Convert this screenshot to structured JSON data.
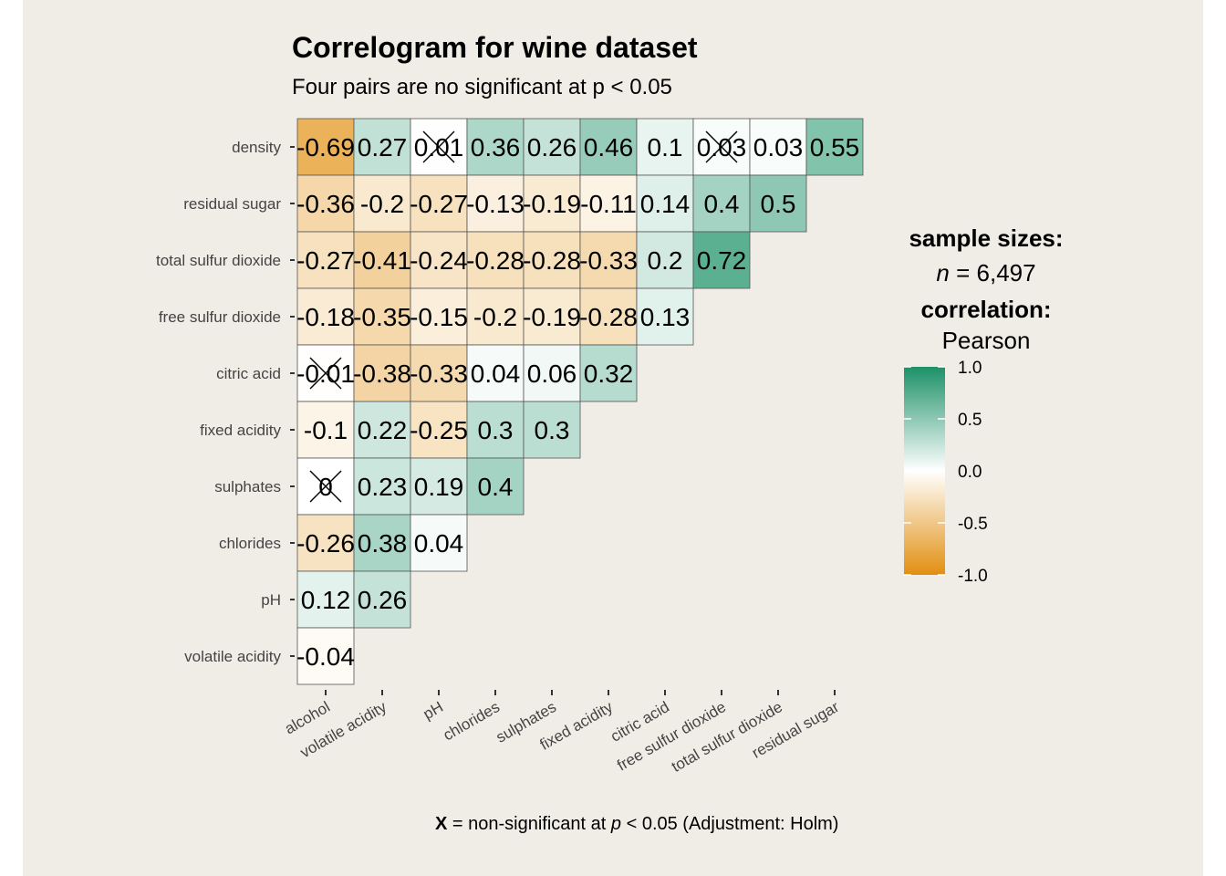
{
  "colors": {
    "background": "#F0EDE6",
    "low": "#E28F10",
    "mid": "#FFFFFF",
    "high": "#1C9168"
  },
  "header": {
    "title": "Correlogram for wine dataset",
    "subtitle": "Four pairs are no significant at p < 0.05"
  },
  "caption": {
    "mark": "X",
    "text_before": " = non-significant at ",
    "p": "p",
    "text_after": " < 0.05 (Adjustment: Holm)"
  },
  "legend": {
    "sample_title": "sample sizes:",
    "n_label": "n",
    "n_value": " = 6,497",
    "corr_title": "correlation:",
    "corr_method": "Pearson",
    "ticks": [
      "1.0",
      "0.5",
      "0.0",
      "-0.5",
      "-1.0"
    ],
    "tick_values": [
      1.0,
      0.5,
      0.0,
      -0.5,
      -1.0
    ]
  },
  "chart_data": {
    "type": "heatmap",
    "title": "Correlogram for wine dataset",
    "subtitle": "Four pairs are no significant at p < 0.05",
    "x_labels": [
      "alcohol",
      "volatile acidity",
      "pH",
      "chlorides",
      "sulphates",
      "fixed acidity",
      "citric acid",
      "free sulfur dioxide",
      "total sulfur dioxide",
      "residual sugar"
    ],
    "y_labels": [
      "density",
      "residual sugar",
      "total sulfur dioxide",
      "free sulfur dioxide",
      "citric acid",
      "fixed acidity",
      "sulphates",
      "chlorides",
      "pH",
      "volatile acidity"
    ],
    "rows": [
      {
        "values": [
          -0.69,
          0.27,
          0.01,
          0.36,
          0.26,
          0.46,
          0.1,
          0.03,
          0.03,
          0.55
        ],
        "labels": [
          "-0.69",
          "0.27",
          "0.01",
          "0.36",
          "0.26",
          "0.46",
          "0.1",
          "0.03",
          "0.03",
          "0.55"
        ],
        "nonsig": [
          false,
          false,
          true,
          false,
          false,
          false,
          false,
          true,
          false,
          false
        ]
      },
      {
        "values": [
          -0.36,
          -0.2,
          -0.27,
          -0.13,
          -0.19,
          -0.11,
          0.14,
          0.4,
          0.5
        ],
        "labels": [
          "-0.36",
          "-0.2",
          "-0.27",
          "-0.13",
          "-0.19",
          "-0.11",
          "0.14",
          "0.4",
          "0.5"
        ],
        "nonsig": [
          false,
          false,
          false,
          false,
          false,
          false,
          false,
          false,
          false
        ]
      },
      {
        "values": [
          -0.27,
          -0.41,
          -0.24,
          -0.28,
          -0.28,
          -0.33,
          0.2,
          0.72
        ],
        "labels": [
          "-0.27",
          "-0.41",
          "-0.24",
          "-0.28",
          "-0.28",
          "-0.33",
          "0.2",
          "0.72"
        ],
        "nonsig": [
          false,
          false,
          false,
          false,
          false,
          false,
          false,
          false
        ]
      },
      {
        "values": [
          -0.18,
          -0.35,
          -0.15,
          -0.2,
          -0.19,
          -0.28,
          0.13
        ],
        "labels": [
          "-0.18",
          "-0.35",
          "-0.15",
          "-0.2",
          "-0.19",
          "-0.28",
          "0.13"
        ],
        "nonsig": [
          false,
          false,
          false,
          false,
          false,
          false,
          false
        ]
      },
      {
        "values": [
          -0.01,
          -0.38,
          -0.33,
          0.04,
          0.06,
          0.32
        ],
        "labels": [
          "-0.01",
          "-0.38",
          "-0.33",
          "0.04",
          "0.06",
          "0.32"
        ],
        "nonsig": [
          true,
          false,
          false,
          false,
          false,
          false
        ]
      },
      {
        "values": [
          -0.1,
          0.22,
          -0.25,
          0.3,
          0.3
        ],
        "labels": [
          "-0.1",
          "0.22",
          "-0.25",
          "0.3",
          "0.3"
        ],
        "nonsig": [
          false,
          false,
          false,
          false,
          false
        ]
      },
      {
        "values": [
          0,
          0.23,
          0.19,
          0.4
        ],
        "labels": [
          "0",
          "0.23",
          "0.19",
          "0.4"
        ],
        "nonsig": [
          true,
          false,
          false,
          false
        ]
      },
      {
        "values": [
          -0.26,
          0.38,
          0.04
        ],
        "labels": [
          "-0.26",
          "0.38",
          "0.04"
        ],
        "nonsig": [
          false,
          false,
          false
        ]
      },
      {
        "values": [
          0.12,
          0.26
        ],
        "labels": [
          "0.12",
          "0.26"
        ],
        "nonsig": [
          false,
          false
        ]
      },
      {
        "values": [
          -0.04
        ],
        "labels": [
          "-0.04"
        ],
        "nonsig": [
          false
        ]
      }
    ],
    "color_scale": {
      "min": -1.0,
      "max": 1.0
    }
  }
}
